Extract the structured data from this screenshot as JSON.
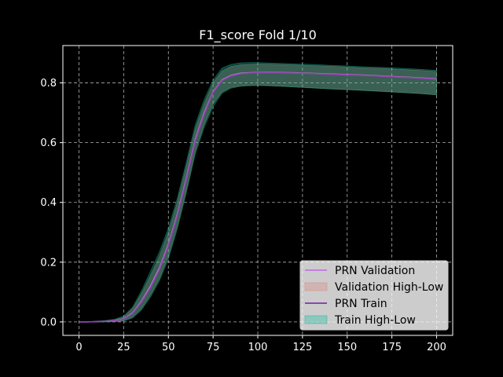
{
  "chart_data": {
    "type": "line",
    "title": "F1_score Fold 1/10",
    "xlabel": "",
    "ylabel": "",
    "xlim": [
      -9,
      209
    ],
    "ylim": [
      -0.045,
      0.925
    ],
    "xticks": [
      0,
      25,
      50,
      75,
      100,
      125,
      150,
      175,
      200
    ],
    "xtick_labels": [
      "0",
      "25",
      "50",
      "75",
      "100",
      "125",
      "150",
      "175",
      "200"
    ],
    "yticks": [
      0.0,
      0.2,
      0.4,
      0.6,
      0.8
    ],
    "ytick_labels": [
      "0.0",
      "0.2",
      "0.4",
      "0.6",
      "0.8"
    ],
    "grid": true,
    "legend_position": "lower-right",
    "x": [
      0,
      5,
      10,
      15,
      20,
      25,
      30,
      35,
      40,
      45,
      50,
      55,
      60,
      65,
      70,
      75,
      80,
      85,
      90,
      95,
      100,
      110,
      120,
      130,
      140,
      150,
      160,
      170,
      180,
      190,
      200
    ],
    "series": [
      {
        "name": "PRN Validation",
        "kind": "line",
        "color": "#c77fde",
        "values": [
          0.0,
          0.0,
          0.001,
          0.002,
          0.004,
          0.01,
          0.03,
          0.07,
          0.12,
          0.18,
          0.26,
          0.36,
          0.48,
          0.61,
          0.7,
          0.77,
          0.81,
          0.825,
          0.832,
          0.834,
          0.835,
          0.835,
          0.834,
          0.832,
          0.83,
          0.828,
          0.826,
          0.823,
          0.82,
          0.817,
          0.813
        ]
      },
      {
        "name": "Validation High-Low",
        "kind": "band",
        "color": "#d98880",
        "upper": [
          0.0,
          0.0,
          0.002,
          0.004,
          0.007,
          0.016,
          0.045,
          0.095,
          0.155,
          0.22,
          0.3,
          0.4,
          0.52,
          0.645,
          0.73,
          0.8,
          0.84,
          0.855,
          0.86,
          0.862,
          0.863,
          0.862,
          0.86,
          0.858,
          0.856,
          0.853,
          0.85,
          0.848,
          0.845,
          0.842,
          0.838
        ],
        "lower": [
          0.0,
          0.0,
          0.0,
          0.0,
          0.001,
          0.004,
          0.016,
          0.045,
          0.09,
          0.145,
          0.22,
          0.32,
          0.44,
          0.57,
          0.66,
          0.73,
          0.77,
          0.785,
          0.79,
          0.792,
          0.793,
          0.79,
          0.787,
          0.784,
          0.78,
          0.778,
          0.775,
          0.772,
          0.768,
          0.765,
          0.76
        ]
      },
      {
        "name": "PRN Train",
        "kind": "line",
        "color": "#8e44ad",
        "values": [
          0.0,
          0.0,
          0.001,
          0.002,
          0.004,
          0.009,
          0.028,
          0.067,
          0.115,
          0.175,
          0.255,
          0.355,
          0.475,
          0.605,
          0.695,
          0.768,
          0.808,
          0.823,
          0.83,
          0.833,
          0.834,
          0.834,
          0.833,
          0.831,
          0.829,
          0.827,
          0.825,
          0.822,
          0.819,
          0.816,
          0.812
        ]
      },
      {
        "name": "Train High-Low",
        "kind": "band",
        "color": "#1abc9c",
        "upper": [
          0.0,
          0.001,
          0.003,
          0.005,
          0.009,
          0.02,
          0.05,
          0.105,
          0.17,
          0.235,
          0.315,
          0.415,
          0.535,
          0.66,
          0.745,
          0.81,
          0.85,
          0.862,
          0.867,
          0.868,
          0.868,
          0.866,
          0.864,
          0.862,
          0.859,
          0.857,
          0.854,
          0.852,
          0.849,
          0.846,
          0.842
        ],
        "lower": [
          0.0,
          0.0,
          0.0,
          0.0,
          0.0,
          0.003,
          0.013,
          0.04,
          0.083,
          0.137,
          0.21,
          0.31,
          0.43,
          0.56,
          0.65,
          0.72,
          0.765,
          0.782,
          0.788,
          0.79,
          0.791,
          0.789,
          0.786,
          0.783,
          0.78,
          0.777,
          0.774,
          0.771,
          0.768,
          0.764,
          0.76
        ]
      }
    ]
  }
}
